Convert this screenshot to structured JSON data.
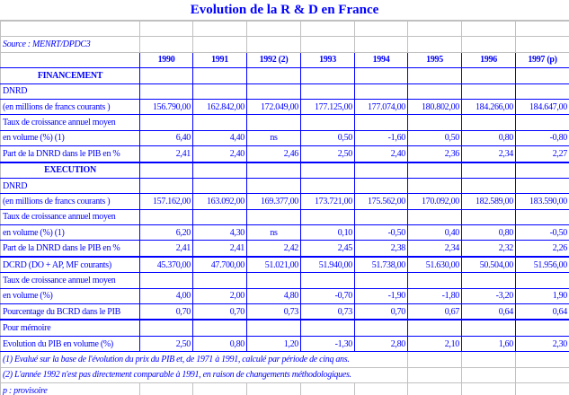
{
  "title": "Evolution de la R & D en France",
  "source": "Source : MENRT/DPDC3",
  "years": [
    "1990",
    "1991",
    "1992 (2)",
    "1993",
    "1994",
    "1995",
    "1996",
    "1997 (p)"
  ],
  "rows": [
    {
      "label": "FINANCEMENT",
      "type": "section",
      "values": []
    },
    {
      "label": "DNRD",
      "values": []
    },
    {
      "label": "(en millions de francs courants )",
      "values": [
        "156.790,00",
        "162.842,00",
        "172.049,00",
        "177.125,00",
        "177.074,00",
        "180.802,00",
        "184.266,00",
        "184.647,00"
      ]
    },
    {
      "label": "Taux de croissance annuel moyen",
      "values": []
    },
    {
      "label": "en volume (%) (1)",
      "values": [
        "6,40",
        "4,40",
        "ns",
        "0,50",
        "-1,60",
        "0,50",
        "0,80",
        "-0,80"
      ]
    },
    {
      "label": "Part de la DNRD dans le PIB en %",
      "values": [
        "2,41",
        "2,40",
        "2,46",
        "2,50",
        "2,40",
        "2,36",
        "2,34",
        "2,27"
      ]
    },
    {
      "label": "EXECUTION",
      "type": "section",
      "values": []
    },
    {
      "label": "DNRD",
      "values": []
    },
    {
      "label": "(en millions de francs courants )",
      "values": [
        "157.162,00",
        "163.092,00",
        "169.377,00",
        "173.721,00",
        "175.562,00",
        "170.092,00",
        "182.589,00",
        "183.590,00"
      ]
    },
    {
      "label": "Taux de croissance annuel moyen",
      "values": []
    },
    {
      "label": "en volume (%) (1)",
      "values": [
        "6,20",
        "4,30",
        "ns",
        "0,10",
        "-0,50",
        "0,40",
        "0,80",
        "-0,50"
      ]
    },
    {
      "label": "Part de la DNRD dans le PIB en %",
      "values": [
        "2,41",
        "2,41",
        "2,42",
        "2,45",
        "2,38",
        "2,34",
        "2,32",
        "2,26"
      ]
    },
    {
      "label": "DCRD (DO + AP, MF courants)",
      "type": "thick",
      "values": [
        "45.370,00",
        "47.700,00",
        "51.021,00",
        "51.940,00",
        "51.738,00",
        "51.630,00",
        "50.504,00",
        "51.956,00"
      ]
    },
    {
      "label": "Taux de croissance annuel moyen",
      "values": []
    },
    {
      "label": "en volume (%)",
      "values": [
        "4,00",
        "2,00",
        "4,80",
        "-0,70",
        "-1,90",
        "-1,80",
        "-3,20",
        "1,90"
      ]
    },
    {
      "label": "Pourcentage du BCRD dans le PIB",
      "values": [
        "0,70",
        "0,70",
        "0,73",
        "0,73",
        "0,70",
        "0,67",
        "0,64",
        "0,64"
      ]
    },
    {
      "label": "Pour mémoire",
      "type": "thick",
      "values": []
    },
    {
      "label": "Evolution du PIB en volume (%)",
      "values": [
        "2,50",
        "0,80",
        "1,20",
        "-1,30",
        "2,80",
        "2,10",
        "1,60",
        "2,30"
      ]
    }
  ],
  "notes": [
    "(1) Evalué sur la base de l'évolution du prix du PIB et, de 1971 à 1991, calculé par période de cinq ans.",
    "(2) L'année 1992 n'est pas directement comparable à 1991, en raison de changements méthodologiques."
  ],
  "provisoire": "p : provisoire"
}
